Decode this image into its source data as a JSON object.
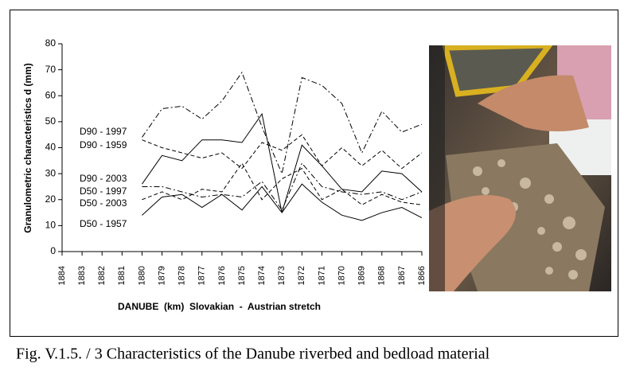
{
  "chart_data": {
    "type": "line",
    "y_label": "Granulometric characteristics d (mm)",
    "x_label": "DANUBE  (km)  Slovakian  -  Austrian stretch",
    "x": [
      1880,
      1879,
      1878,
      1877,
      1876,
      1875,
      1874,
      1873,
      1872,
      1871,
      1870,
      1869,
      1868,
      1867,
      1866
    ],
    "xlim": [
      1884,
      1866
    ],
    "xticks": [
      1884,
      1883,
      1882,
      1881,
      1880,
      1879,
      1878,
      1877,
      1876,
      1875,
      1874,
      1873,
      1872,
      1871,
      1870,
      1869,
      1868,
      1867,
      1866
    ],
    "ylim": [
      0,
      80
    ],
    "yticks": [
      0,
      10,
      20,
      30,
      40,
      50,
      60,
      70,
      80
    ],
    "series": [
      {
        "name": "D90 - 1997",
        "color": "#000000",
        "dash": "dashdot",
        "values": [
          44,
          55,
          56,
          51,
          58,
          69,
          48,
          30,
          67,
          64,
          57,
          38,
          54,
          46,
          49
        ]
      },
      {
        "name": "D90 - 1959",
        "color": "#000000",
        "dash": "dashed",
        "values": [
          43,
          40,
          38,
          36,
          38,
          32,
          42,
          39,
          45,
          33,
          40,
          33,
          39,
          32,
          38
        ]
      },
      {
        "name": "D90 - 2003",
        "color": "#000000",
        "dash": "solid",
        "values": [
          26,
          37,
          35,
          43,
          43,
          42,
          53,
          15,
          41,
          33,
          24,
          23,
          31,
          30,
          23
        ]
      },
      {
        "name": "D50 - 1997",
        "color": "#000000",
        "dash": "dashdot",
        "values": [
          25,
          25,
          23,
          21,
          22,
          21,
          27,
          16,
          34,
          25,
          23,
          22,
          23,
          20,
          23
        ]
      },
      {
        "name": "D50 - 2003",
        "color": "#000000",
        "dash": "dashed",
        "values": [
          20,
          23,
          20,
          24,
          23,
          34,
          20,
          28,
          32,
          20,
          24,
          18,
          22,
          19,
          18
        ]
      },
      {
        "name": "D50 - 1957",
        "color": "#000000",
        "dash": "solid",
        "values": [
          14,
          21,
          22,
          17,
          22,
          16,
          25,
          15,
          26,
          19,
          14,
          12,
          15,
          17,
          13
        ]
      }
    ]
  },
  "caption": "Fig. V.1.5. / 3  Characteristics of the Danube riverbed and bedload material"
}
